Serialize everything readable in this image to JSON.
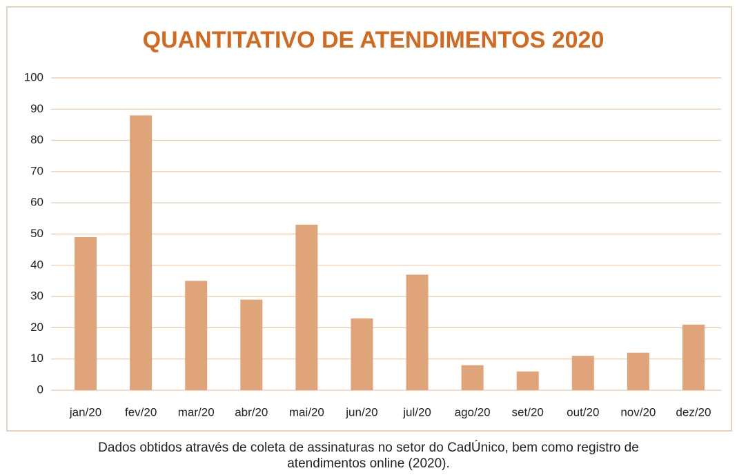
{
  "chart_data": {
    "type": "bar",
    "title": "QUANTITATIVO DE ATENDIMENTOS 2020",
    "categories": [
      "jan/20",
      "fev/20",
      "mar/20",
      "abr/20",
      "mai/20",
      "jun/20",
      "jul/20",
      "ago/20",
      "set/20",
      "out/20",
      "nov/20",
      "dez/20"
    ],
    "values": [
      49,
      88,
      35,
      29,
      53,
      23,
      37,
      8,
      6,
      11,
      12,
      21
    ],
    "color": "#e0a47a",
    "ylim": [
      0,
      100
    ],
    "yticks": [
      0,
      10,
      20,
      30,
      40,
      50,
      60,
      70,
      80,
      90,
      100
    ],
    "grid": true,
    "caption": [
      "Dados obtidos através de coleta de assinaturas no setor do CadÚnico, bem como registro de",
      "atendimentos online (2020)."
    ]
  }
}
